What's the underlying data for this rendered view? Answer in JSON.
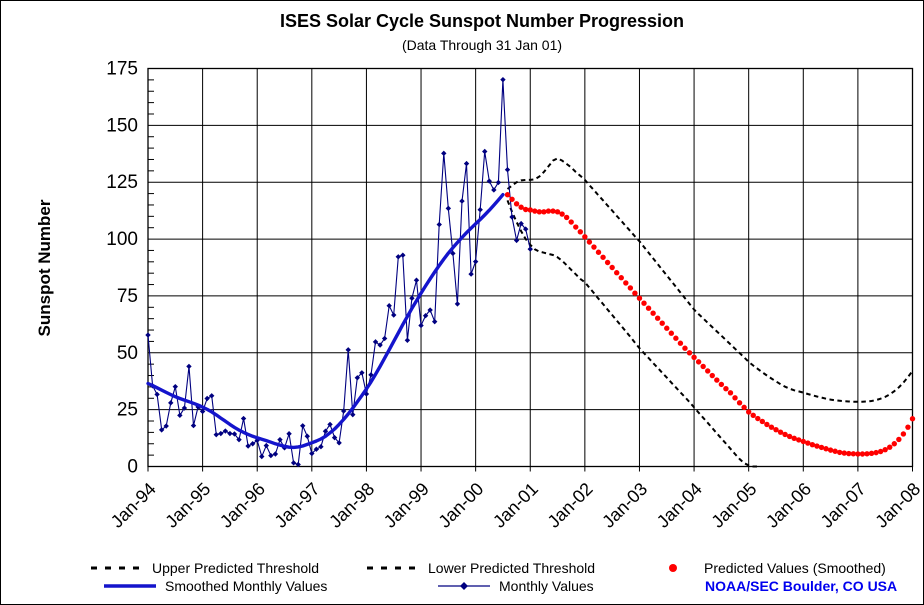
{
  "header": {
    "title": "ISES Solar Cycle Sunspot Number Progression",
    "subtitle": "(Data Through 31 Jan 01)"
  },
  "axes": {
    "y_label": "Sunspot Number",
    "y_ticks": [
      0,
      25,
      50,
      75,
      100,
      125,
      150,
      175
    ],
    "y_minor_step": 5,
    "x_tick_labels": [
      "Jan-94",
      "Jan-95",
      "Jan-96",
      "Jan-97",
      "Jan-98",
      "Jan-99",
      "Jan-00",
      "Jan-01",
      "Jan-02",
      "Jan-03",
      "Jan-04",
      "Jan-05",
      "Jan-06",
      "Jan-07",
      "Jan-08"
    ]
  },
  "legend": {
    "items": [
      {
        "label": "Upper Predicted Threshold",
        "swatch": "dashed-black"
      },
      {
        "label": "Lower Predicted Threshold",
        "swatch": "dashed-black"
      },
      {
        "label": "Predicted Values (Smoothed)",
        "swatch": "red-dot"
      },
      {
        "label": "Smoothed Monthly Values",
        "swatch": "blue-thick-line"
      },
      {
        "label": "Monthly Values",
        "swatch": "blue-line-diamond"
      }
    ],
    "credit": "NOAA/SEC Boulder, CO USA"
  },
  "colors": {
    "monthly": "#000080",
    "smoothed": "#1414cc",
    "predicted": "#ff0000",
    "threshold": "#000000",
    "grid": "#000000",
    "credit_blue": "#0000ee"
  },
  "chart_data": {
    "type": "line",
    "title": "ISES Solar Cycle Sunspot Number Progression",
    "subtitle": "(Data Through 31 Jan 01)",
    "xlabel": "",
    "ylabel": "Sunspot Number",
    "ylim": [
      0,
      175
    ],
    "x_axis": {
      "unit": "month",
      "start": "Jan-1994",
      "end": "Jan-2008",
      "total_months": 168,
      "tick_every_months": 12
    },
    "grid": true,
    "legend_position": "bottom",
    "series": [
      {
        "name": "Monthly Values",
        "style": "line-diamond",
        "color": "#000080",
        "start_offset_months": 0,
        "values": [
          57.8,
          35.5,
          31.7,
          16.1,
          17.8,
          28,
          35.1,
          22.5,
          25.7,
          44,
          18,
          26.2,
          24.2,
          29.9,
          31.1,
          14,
          14.5,
          15.6,
          14.5,
          14.3,
          11.8,
          21.1,
          9,
          10,
          11.5,
          4.4,
          9.2,
          4.8,
          5.5,
          11.8,
          8.2,
          14.4,
          1.6,
          0.9,
          17.9,
          13.3,
          5.7,
          7.6,
          8.7,
          15.5,
          18.5,
          12.7,
          10.4,
          24.4,
          51.3,
          22.8,
          39,
          41.2,
          31.9,
          40.3,
          54.8,
          53.4,
          56.3,
          70.7,
          66.6,
          92.2,
          92.9,
          55.5,
          74,
          81.9,
          62,
          66.3,
          68.8,
          63.7,
          106.4,
          137.7,
          113.5,
          93.7,
          71.5,
          116.7,
          133.2,
          84.6,
          90.1,
          112.9,
          138.5,
          125.5,
          121.6,
          124.9,
          170.1,
          130.5,
          109.7,
          99.4,
          106.8,
          104.4,
          95.6
        ]
      },
      {
        "name": "Smoothed Monthly Values",
        "style": "thick-line",
        "color": "#1414cc",
        "start_offset_months": 0,
        "values": [
          36.5,
          35.6,
          34.6,
          33.6,
          32.6,
          31.6,
          30.7,
          29.9,
          29.2,
          28.5,
          27.8,
          27,
          26.1,
          25.1,
          24,
          22.7,
          21.3,
          19.9,
          18.5,
          17.2,
          16,
          15,
          14.1,
          13.3,
          12.6,
          12,
          11.4,
          10.7,
          10,
          9.4,
          8.9,
          8.5,
          8.4,
          8.6,
          9,
          9.7,
          10.4,
          11.2,
          12.1,
          13.3,
          14.8,
          16.5,
          18.5,
          20.7,
          23.1,
          25.7,
          28.4,
          31.2,
          34.1,
          37.2,
          40.5,
          44,
          47.6,
          51.3,
          55,
          58.7,
          62.4,
          66,
          69.5,
          72.9,
          76.2,
          79.4,
          82.5,
          85.5,
          88.4,
          91.2,
          93.8,
          96.2,
          98.5,
          100.7,
          102.8,
          104.8,
          106.7,
          108.6,
          110.6,
          112.7,
          114.9,
          117.2,
          119.5
        ]
      },
      {
        "name": "Upper Predicted Threshold",
        "style": "dashed",
        "color": "#000000",
        "start_offset_months": 79,
        "values": [
          122,
          123.5,
          125,
          125.8,
          126,
          126,
          126.3,
          127.5,
          129.5,
          132,
          134.5,
          135.5,
          134.5,
          133,
          131.5,
          129.5,
          127.8,
          126,
          123.7,
          121.5,
          119.2,
          117,
          114.7,
          112.5,
          110.2,
          108,
          105.7,
          103.5,
          101.2,
          99,
          96.5,
          94,
          91.5,
          89,
          86.5,
          84,
          81.5,
          79,
          76.5,
          74,
          71.5,
          69,
          67,
          65.1,
          63.2,
          61.3,
          59.4,
          57.5,
          55.6,
          53.7,
          51.8,
          49.9,
          48,
          46,
          44.4,
          42.9,
          41.4,
          40,
          38.7,
          37.4,
          36.2,
          35.1,
          34.2,
          33.5,
          33,
          32.5,
          31.9,
          31.3,
          30.8,
          30.3,
          29.8,
          29.4,
          29.1,
          28.9,
          28.7,
          28.6,
          28.5,
          28.5,
          28.5,
          28.6,
          28.8,
          29.2,
          29.8,
          30.6,
          31.7,
          33.1,
          34.8,
          36.9,
          39.3,
          42
        ]
      },
      {
        "name": "Lower Predicted Threshold",
        "style": "dashed",
        "color": "#000000",
        "start_offset_months": 79,
        "values": [
          117,
          112,
          107.5,
          103.5,
          100,
          97.5,
          95.5,
          94.5,
          94,
          93.5,
          93,
          92,
          90.5,
          88.5,
          86.5,
          84.5,
          82.5,
          81,
          78.6,
          76.2,
          73.8,
          71.4,
          69,
          66.6,
          64.2,
          61.8,
          59.4,
          57,
          54.5,
          52,
          49.8,
          47.7,
          45.5,
          43.4,
          41.2,
          39.1,
          36.9,
          34.8,
          32.6,
          30.5,
          28.3,
          26,
          23.7,
          21.4,
          19.2,
          16.9,
          14.6,
          12.3,
          10.1,
          7.8,
          5.5,
          3.3,
          1.5,
          0.5,
          0,
          0
        ]
      },
      {
        "name": "Predicted Values (Smoothed)",
        "style": "dots",
        "color": "#ff0000",
        "start_offset_months": 79,
        "values": [
          119.5,
          117.5,
          115.5,
          114,
          113,
          112.8,
          112.3,
          112,
          112,
          112.3,
          112.3,
          112,
          111,
          109.5,
          107.5,
          105.3,
          103.2,
          101,
          98.7,
          96.5,
          94.2,
          92,
          89.7,
          87.5,
          85.2,
          83,
          80.7,
          78.5,
          76.2,
          74,
          71.8,
          69.6,
          67.4,
          65.2,
          63,
          60.8,
          58.6,
          56.4,
          54.2,
          52,
          50,
          48,
          46,
          44,
          42,
          40,
          38,
          36.1,
          34.2,
          32.4,
          30.2,
          28,
          26,
          24,
          22.5,
          21.1,
          19.8,
          18.5,
          17.3,
          16.2,
          15.1,
          14.1,
          13.2,
          12.4,
          11.7,
          11,
          10.3,
          9.6,
          9,
          8.4,
          7.8,
          7.2,
          6.7,
          6.2,
          5.9,
          5.7,
          5.6,
          5.5,
          5.5,
          5.6,
          5.8,
          6.1,
          6.6,
          7.4,
          8.5,
          10,
          11.9,
          14.3,
          17.3,
          21
        ]
      }
    ]
  }
}
